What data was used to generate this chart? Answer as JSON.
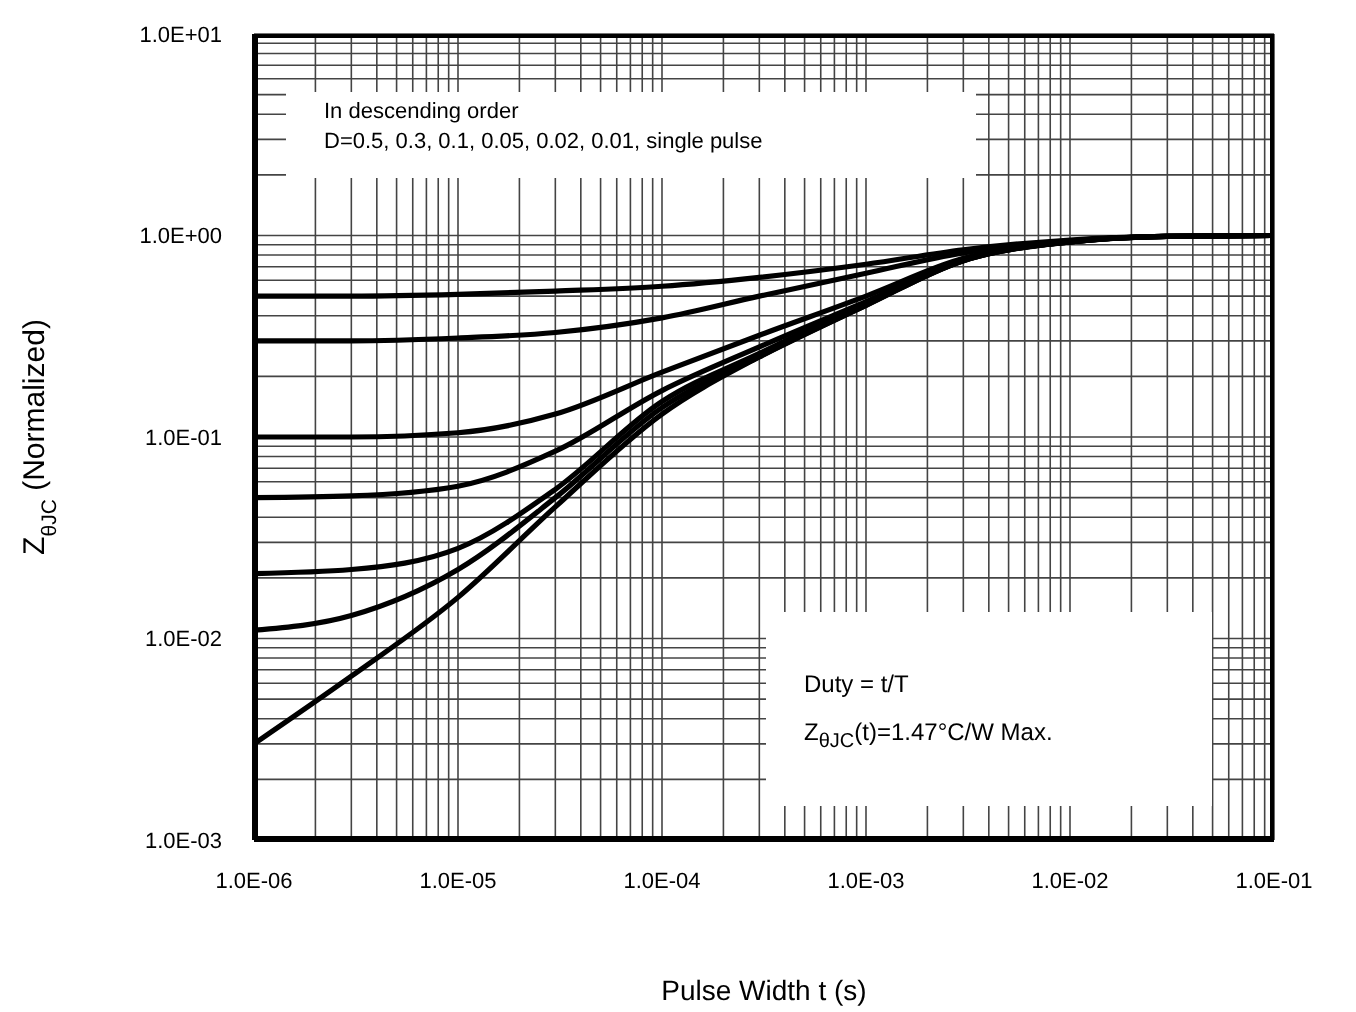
{
  "chart_data": {
    "type": "line",
    "xlabel": "Pulse Width t (s)",
    "ylabel": "Z$_{θJC}$ (Normalized)",
    "annotations": [
      "In descending order",
      "D=0.5, 0.3, 0.1, 0.05, 0.02, 0.01, single pulse",
      "Duty = t/T",
      "Z$_{θJC}$(t)=1.47°C/W Max."
    ],
    "log": "xy",
    "grid": true,
    "legend": false,
    "marker": "none",
    "line_style": "solid",
    "x": [
      1e-06,
      3e-06,
      1e-05,
      3e-05,
      0.0001,
      0.0003,
      0.001,
      0.003,
      0.01,
      0.03,
      0.1
    ],
    "series": [
      {
        "color": "#000000",
        "values": [
          0.5,
          0.5,
          0.51,
          0.53,
          0.56,
          0.62,
          0.72,
          0.85,
          0.95,
          0.99,
          1.0
        ]
      },
      {
        "color": "#000000",
        "values": [
          0.3,
          0.3,
          0.31,
          0.33,
          0.39,
          0.5,
          0.65,
          0.82,
          0.94,
          0.99,
          1.0
        ]
      },
      {
        "color": "#000000",
        "values": [
          0.1,
          0.1,
          0.105,
          0.13,
          0.21,
          0.32,
          0.5,
          0.77,
          0.93,
          0.99,
          1.0
        ]
      },
      {
        "color": "#000000",
        "values": [
          0.05,
          0.051,
          0.057,
          0.085,
          0.17,
          0.28,
          0.47,
          0.76,
          0.93,
          0.99,
          1.0
        ]
      },
      {
        "color": "#000000",
        "values": [
          0.021,
          0.022,
          0.028,
          0.055,
          0.15,
          0.26,
          0.46,
          0.75,
          0.93,
          0.99,
          1.0
        ]
      },
      {
        "color": "#000000",
        "values": [
          0.011,
          0.013,
          0.022,
          0.05,
          0.14,
          0.25,
          0.45,
          0.75,
          0.93,
          0.99,
          1.0
        ]
      },
      {
        "color": "#000000",
        "values": [
          0.003,
          0.0065,
          0.016,
          0.045,
          0.13,
          0.25,
          0.45,
          0.75,
          0.93,
          0.99,
          1.0
        ]
      }
    ],
    "xlim": [
      1e-06,
      0.1
    ],
    "xticks": [
      {
        "value": 1e-06,
        "label": "1.0E-06"
      },
      {
        "value": 2e-06,
        "label": null
      },
      {
        "value": 3e-06,
        "label": null
      },
      {
        "value": 4e-06,
        "label": null
      },
      {
        "value": 5e-06,
        "label": null
      },
      {
        "value": 6e-06,
        "label": null
      },
      {
        "value": 7e-06,
        "label": null
      },
      {
        "value": 8e-06,
        "label": null
      },
      {
        "value": 9e-06,
        "label": null
      },
      {
        "value": 1e-05,
        "label": "1.0E-05"
      },
      {
        "value": 2e-05,
        "label": null
      },
      {
        "value": 3e-05,
        "label": null
      },
      {
        "value": 4e-05,
        "label": null
      },
      {
        "value": 5e-05,
        "label": null
      },
      {
        "value": 6e-05,
        "label": null
      },
      {
        "value": 7e-05,
        "label": null
      },
      {
        "value": 8e-05,
        "label": null
      },
      {
        "value": 9e-05,
        "label": null
      },
      {
        "value": 0.0001,
        "label": "1.0E-04"
      },
      {
        "value": 0.0002,
        "label": null
      },
      {
        "value": 0.0003,
        "label": null
      },
      {
        "value": 0.0004,
        "label": null
      },
      {
        "value": 0.0005,
        "label": null
      },
      {
        "value": 0.0006,
        "label": null
      },
      {
        "value": 0.0007,
        "label": null
      },
      {
        "value": 0.0008,
        "label": null
      },
      {
        "value": 0.0009,
        "label": null
      },
      {
        "value": 0.001,
        "label": "1.0E-03"
      },
      {
        "value": 0.002,
        "label": null
      },
      {
        "value": 0.003,
        "label": null
      },
      {
        "value": 0.004,
        "label": null
      },
      {
        "value": 0.005,
        "label": null
      },
      {
        "value": 0.006,
        "label": null
      },
      {
        "value": 0.007,
        "label": null
      },
      {
        "value": 0.008,
        "label": null
      },
      {
        "value": 0.009,
        "label": null
      },
      {
        "value": 0.01,
        "label": "1.0E-02"
      },
      {
        "value": 0.02,
        "label": null
      },
      {
        "value": 0.03,
        "label": null
      },
      {
        "value": 0.04,
        "label": null
      },
      {
        "value": 0.05,
        "label": null
      },
      {
        "value": 0.06,
        "label": null
      },
      {
        "value": 0.07,
        "label": null
      },
      {
        "value": 0.08,
        "label": null
      },
      {
        "value": 0.09,
        "label": null
      },
      {
        "value": 0.1,
        "label": "1.0E-01"
      }
    ],
    "ylim": [
      0.001,
      10
    ],
    "yticks": [
      {
        "value": 0.001,
        "label": "1.0E-03"
      },
      {
        "value": 0.002,
        "label": null
      },
      {
        "value": 0.003,
        "label": null
      },
      {
        "value": 0.004,
        "label": null
      },
      {
        "value": 0.005,
        "label": null
      },
      {
        "value": 0.006,
        "label": null
      },
      {
        "value": 0.007,
        "label": null
      },
      {
        "value": 0.008,
        "label": null
      },
      {
        "value": 0.009,
        "label": null
      },
      {
        "value": 0.01,
        "label": "1.0E-02"
      },
      {
        "value": 0.02,
        "label": null
      },
      {
        "value": 0.03,
        "label": null
      },
      {
        "value": 0.04,
        "label": null
      },
      {
        "value": 0.05,
        "label": null
      },
      {
        "value": 0.06,
        "label": null
      },
      {
        "value": 0.07,
        "label": null
      },
      {
        "value": 0.08,
        "label": null
      },
      {
        "value": 0.09,
        "label": null
      },
      {
        "value": 0.1,
        "label": "1.0E-01"
      },
      {
        "value": 0.2,
        "label": null
      },
      {
        "value": 0.3,
        "label": null
      },
      {
        "value": 0.4,
        "label": null
      },
      {
        "value": 0.5,
        "label": null
      },
      {
        "value": 0.6,
        "label": null
      },
      {
        "value": 0.7,
        "label": null
      },
      {
        "value": 0.8,
        "label": null
      },
      {
        "value": 0.9,
        "label": null
      },
      {
        "value": 1,
        "label": "1.0E+00"
      },
      {
        "value": 2,
        "label": null
      },
      {
        "value": 3,
        "label": null
      },
      {
        "value": 4,
        "label": null
      },
      {
        "value": 5,
        "label": null
      },
      {
        "value": 6,
        "label": null
      },
      {
        "value": 7,
        "label": null
      },
      {
        "value": 8,
        "label": null
      },
      {
        "value": 9,
        "label": null
      },
      {
        "value": 10,
        "label": "1.0E+01"
      }
    ]
  }
}
